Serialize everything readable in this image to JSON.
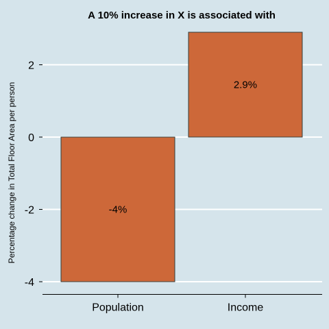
{
  "chart_data": {
    "type": "bar",
    "title": "A 10% increase in X is associated with",
    "xlabel": "",
    "ylabel": "Percentage change in Total Floor Area per person",
    "categories": [
      "Population",
      "Income"
    ],
    "values": [
      -4,
      2.9
    ],
    "data_labels": [
      "-4%",
      "2.9%"
    ],
    "ylim": [
      -4.35,
      3.05
    ],
    "yticks": [
      -4,
      -2,
      0,
      2
    ],
    "ytick_labels": [
      "-4",
      "-2",
      "0",
      "2"
    ],
    "grid": true,
    "legend": "none",
    "colors": {
      "background": "#d5e4eb",
      "bar_fill": "#cd6839",
      "bar_stroke": "#2f3f3f",
      "grid": "#ffffff",
      "axis": "#000000"
    }
  }
}
